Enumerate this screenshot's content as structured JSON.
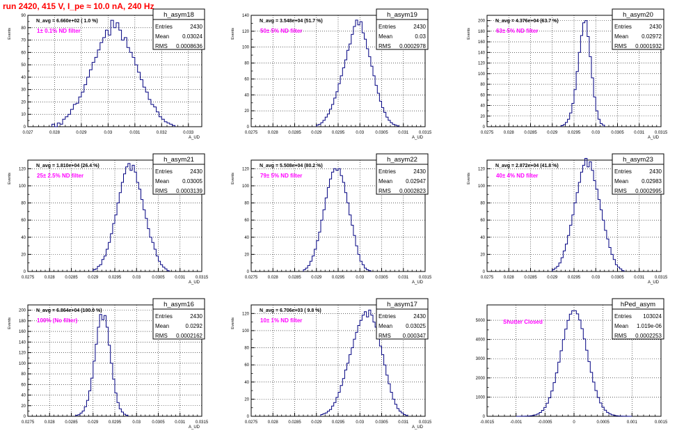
{
  "page_title": "run 2420,   415 V, I_pe ≈ 10.0 nA, 240 Hz",
  "colors": {
    "histogram_line": "#000080",
    "annotation": "#ff00ff",
    "title": "#ff0000",
    "grid": "#000000"
  },
  "chart_data": [
    {
      "type": "histogram",
      "name": "h_asym18",
      "stats": {
        "Entries": "2430",
        "Mean": "0.03024",
        "RMS": "0.0008636"
      },
      "navg_label": "N_avg = 6.660e+02 ( 1.0 %)",
      "filter_label": "1± 0.1% ND filter",
      "xlabel": "A_UD",
      "ylabel": "Events",
      "xlim": [
        0.027,
        0.0335
      ],
      "ylim": [
        0,
        90
      ],
      "xticks": [
        0.027,
        0.028,
        0.029,
        0.03,
        0.031,
        0.032,
        0.033
      ],
      "xtick_labels": [
        "0.027",
        "0.028",
        "0.029",
        "0.03",
        "0.031",
        "0.032",
        "0.033"
      ],
      "yticks": [
        0,
        10,
        20,
        30,
        40,
        50,
        60,
        70,
        80,
        90
      ],
      "ytick_labels": [
        "0",
        "10",
        "20",
        "30",
        "40",
        "50",
        "60",
        "70",
        "80",
        "90"
      ],
      "bin_edges": [
        0.0279,
        0.028,
        0.0281,
        0.0282,
        0.0283,
        0.0284,
        0.0285,
        0.0286,
        0.0287,
        0.0288,
        0.0289,
        0.029,
        0.0291,
        0.0292,
        0.0293,
        0.0294,
        0.0295,
        0.0296,
        0.0297,
        0.0298,
        0.0299,
        0.03,
        0.0301,
        0.0302,
        0.0303,
        0.0304,
        0.0305,
        0.0306,
        0.0307,
        0.0308,
        0.0309,
        0.031,
        0.0311,
        0.0312,
        0.0313,
        0.0314,
        0.0315,
        0.0316,
        0.0317,
        0.0318,
        0.0319,
        0.032,
        0.0321,
        0.0322,
        0.0323,
        0.0324,
        0.0325
      ],
      "counts": [
        2,
        0,
        3,
        2,
        6,
        8,
        10,
        14,
        18,
        19,
        24,
        28,
        34,
        40,
        46,
        52,
        56,
        62,
        68,
        72,
        78,
        74,
        86,
        80,
        84,
        78,
        70,
        72,
        64,
        60,
        56,
        50,
        44,
        38,
        32,
        28,
        22,
        18,
        16,
        12,
        8,
        6,
        4,
        3,
        2,
        1
      ]
    },
    {
      "type": "histogram",
      "name": "h_asym19",
      "stats": {
        "Entries": "2430",
        "Mean": "0.03",
        "RMS": "0.0002978"
      },
      "navg_label": "N_avg = 3.548e+04 (51.7 %)",
      "filter_label": "50± 5% ND filter",
      "xlabel": "A_UD",
      "ylabel": "Events",
      "xlim": [
        0.0275,
        0.0315
      ],
      "ylim": [
        0,
        140
      ],
      "xticks": [
        0.0275,
        0.028,
        0.0285,
        0.029,
        0.0295,
        0.03,
        0.0305,
        0.031,
        0.0315
      ],
      "xtick_labels": [
        "0.0275",
        "0.028",
        "0.0285",
        "0.029",
        "0.0295",
        "0.03",
        "0.0305",
        "0.031",
        "0.0315"
      ],
      "yticks": [
        0,
        20,
        40,
        60,
        80,
        100,
        120,
        140
      ],
      "ytick_labels": [
        "0",
        "20",
        "40",
        "60",
        "80",
        "100",
        "120",
        "140"
      ],
      "bin_edges": [
        0.029,
        0.02905,
        0.0291,
        0.02915,
        0.0292,
        0.02925,
        0.0293,
        0.02935,
        0.0294,
        0.02945,
        0.0295,
        0.02955,
        0.0296,
        0.02965,
        0.0297,
        0.02975,
        0.0298,
        0.02985,
        0.0299,
        0.02995,
        0.03,
        0.03005,
        0.0301,
        0.03015,
        0.0302,
        0.03025,
        0.0303,
        0.03035,
        0.0304,
        0.03045,
        0.0305,
        0.03055,
        0.0306,
        0.03065,
        0.0307,
        0.03075,
        0.0308,
        0.03085,
        0.0309
      ],
      "counts": [
        2,
        3,
        5,
        8,
        12,
        16,
        22,
        28,
        36,
        44,
        54,
        64,
        74,
        84,
        96,
        104,
        116,
        126,
        134,
        128,
        132,
        118,
        110,
        98,
        88,
        76,
        64,
        52,
        42,
        32,
        24,
        18,
        12,
        8,
        5,
        3,
        2,
        1
      ]
    },
    {
      "type": "histogram",
      "name": "h_asym20",
      "stats": {
        "Entries": "2430",
        "Mean": "0.02972",
        "RMS": "0.0001932"
      },
      "navg_label": "N_avg = 4.376e+04 (63.7 %)",
      "filter_label": "63± 5% ND filter",
      "xlabel": "A_UD",
      "ylabel": "Events",
      "xlim": [
        0.0275,
        0.0315
      ],
      "ylim": [
        0,
        210
      ],
      "xticks": [
        0.0275,
        0.028,
        0.0285,
        0.029,
        0.0295,
        0.03,
        0.0305,
        0.031,
        0.0315
      ],
      "xtick_labels": [
        "0.0275",
        "0.028",
        "0.0285",
        "0.029",
        "0.0295",
        "0.03",
        "0.0305",
        "0.031",
        "0.0315"
      ],
      "yticks": [
        0,
        20,
        40,
        60,
        80,
        100,
        120,
        140,
        160,
        180,
        200
      ],
      "ytick_labels": [
        "0",
        "20",
        "40",
        "60",
        "80",
        "100",
        "120",
        "140",
        "160",
        "180",
        "200"
      ],
      "bin_edges": [
        0.0292,
        0.02925,
        0.0293,
        0.02935,
        0.0294,
        0.02945,
        0.0295,
        0.02955,
        0.0296,
        0.02965,
        0.0297,
        0.02975,
        0.0298,
        0.02985,
        0.0299,
        0.02995,
        0.03,
        0.03005,
        0.0301,
        0.03015,
        0.0302
      ],
      "counts": [
        2,
        4,
        8,
        14,
        26,
        44,
        70,
        104,
        140,
        172,
        196,
        200,
        170,
        132,
        92,
        56,
        30,
        14,
        6,
        3
      ]
    },
    {
      "type": "histogram",
      "name": "h_asym21",
      "stats": {
        "Entries": "2430",
        "Mean": "0.03005",
        "RMS": "0.0003139"
      },
      "navg_label": "N_avg = 1.810e+04 (26.4 %)",
      "filter_label": "25± 2.5% ND filter",
      "xlabel": "A_UD",
      "ylabel": "Events",
      "xlim": [
        0.0275,
        0.0315
      ],
      "ylim": [
        0,
        130
      ],
      "xticks": [
        0.0275,
        0.028,
        0.0285,
        0.029,
        0.0295,
        0.03,
        0.0305,
        0.031,
        0.0315
      ],
      "xtick_labels": [
        "0.0275",
        "0.028",
        "0.0285",
        "0.029",
        "0.0295",
        "0.03",
        "0.0305",
        "0.031",
        "0.0315"
      ],
      "yticks": [
        0,
        20,
        40,
        60,
        80,
        100,
        120
      ],
      "ytick_labels": [
        "0",
        "20",
        "40",
        "60",
        "80",
        "100",
        "120"
      ],
      "bin_edges": [
        0.029,
        0.02905,
        0.0291,
        0.02915,
        0.0292,
        0.02925,
        0.0293,
        0.02935,
        0.0294,
        0.02945,
        0.0295,
        0.02955,
        0.0296,
        0.02965,
        0.0297,
        0.02975,
        0.0298,
        0.02985,
        0.0299,
        0.02995,
        0.03,
        0.03005,
        0.0301,
        0.03015,
        0.0302,
        0.03025,
        0.0303,
        0.03035,
        0.0304,
        0.03045,
        0.0305,
        0.03055,
        0.0306,
        0.03065,
        0.0307,
        0.03075
      ],
      "counts": [
        2,
        3,
        6,
        8,
        14,
        18,
        26,
        34,
        44,
        56,
        66,
        80,
        92,
        104,
        114,
        122,
        126,
        118,
        124,
        116,
        104,
        96,
        84,
        72,
        62,
        50,
        40,
        34,
        26,
        18,
        12,
        8,
        5,
        3,
        1
      ]
    },
    {
      "type": "histogram",
      "name": "h_asym22",
      "stats": {
        "Entries": "2430",
        "Mean": "0.02947",
        "RMS": "0.0002823"
      },
      "navg_label": "N_avg = 5.508e+04 (80.2 %)",
      "filter_label": "79± 5% ND filter",
      "xlabel": "A_UD",
      "ylabel": "Events",
      "xlim": [
        0.0275,
        0.0315
      ],
      "ylim": [
        0,
        130
      ],
      "xticks": [
        0.0275,
        0.028,
        0.0285,
        0.029,
        0.0295,
        0.03,
        0.0305,
        0.031,
        0.0315
      ],
      "xtick_labels": [
        "0.0275",
        "0.028",
        "0.0285",
        "0.029",
        "0.0295",
        "0.03",
        "0.0305",
        "0.031",
        "0.0315"
      ],
      "yticks": [
        0,
        20,
        40,
        60,
        80,
        100,
        120
      ],
      "ytick_labels": [
        "0",
        "20",
        "40",
        "60",
        "80",
        "100",
        "120"
      ],
      "bin_edges": [
        0.0287,
        0.02875,
        0.0288,
        0.02885,
        0.0289,
        0.02895,
        0.029,
        0.02905,
        0.0291,
        0.02915,
        0.0292,
        0.02925,
        0.0293,
        0.02935,
        0.0294,
        0.02945,
        0.0295,
        0.02955,
        0.0296,
        0.02965,
        0.0297,
        0.02975,
        0.0298,
        0.02985,
        0.0299,
        0.02995,
        0.03,
        0.03005,
        0.0301,
        0.03015,
        0.0302,
        0.03025
      ],
      "counts": [
        2,
        4,
        7,
        12,
        18,
        26,
        36,
        46,
        60,
        72,
        86,
        98,
        108,
        116,
        120,
        118,
        120,
        112,
        104,
        92,
        80,
        66,
        54,
        42,
        30,
        20,
        12,
        8,
        4,
        2,
        1
      ]
    },
    {
      "type": "histogram",
      "name": "h_asym23",
      "stats": {
        "Entries": "2430",
        "Mean": "0.02983",
        "RMS": "0.0002995"
      },
      "navg_label": "N_avg = 2.872e+04 (41.8 %)",
      "filter_label": "40± 4% ND filter",
      "xlabel": "A_UD",
      "ylabel": "Events",
      "xlim": [
        0.0275,
        0.0315
      ],
      "ylim": [
        0,
        130
      ],
      "xticks": [
        0.0275,
        0.028,
        0.0285,
        0.029,
        0.0295,
        0.03,
        0.0305,
        0.031,
        0.0315
      ],
      "xtick_labels": [
        "0.0275",
        "0.028",
        "0.0285",
        "0.029",
        "0.0295",
        "0.03",
        "0.0305",
        "0.031",
        "0.0315"
      ],
      "yticks": [
        0,
        20,
        40,
        60,
        80,
        100,
        120
      ],
      "ytick_labels": [
        "0",
        "20",
        "40",
        "60",
        "80",
        "100",
        "120"
      ],
      "bin_edges": [
        0.029,
        0.02905,
        0.0291,
        0.02915,
        0.0292,
        0.02925,
        0.0293,
        0.02935,
        0.0294,
        0.02945,
        0.0295,
        0.02955,
        0.0296,
        0.02965,
        0.0297,
        0.02975,
        0.0298,
        0.02985,
        0.0299,
        0.02995,
        0.03,
        0.03005,
        0.0301,
        0.03015,
        0.0302,
        0.03025,
        0.0303,
        0.03035,
        0.0304,
        0.03045,
        0.0305,
        0.03055,
        0.0306,
        0.03065
      ],
      "counts": [
        2,
        4,
        6,
        10,
        16,
        24,
        32,
        42,
        54,
        66,
        80,
        92,
        104,
        116,
        124,
        132,
        122,
        128,
        118,
        106,
        96,
        84,
        72,
        60,
        48,
        38,
        28,
        20,
        14,
        8,
        5,
        3,
        1
      ]
    },
    {
      "type": "histogram",
      "name": "h_asym16",
      "stats": {
        "Entries": "2430",
        "Mean": "0.0292",
        "RMS": "0.0002162"
      },
      "navg_label": "N_avg = 6.864e+04 (100.0 %)",
      "filter_label": "100% (No filter)",
      "xlabel": "A_UD",
      "ylabel": "Events",
      "xlim": [
        0.0275,
        0.0315
      ],
      "ylim": [
        0,
        210
      ],
      "xticks": [
        0.0275,
        0.028,
        0.0285,
        0.029,
        0.0295,
        0.03,
        0.0305,
        0.031,
        0.0315
      ],
      "xtick_labels": [
        "0.0275",
        "0.028",
        "0.0285",
        "0.029",
        "0.0295",
        "0.03",
        "0.0305",
        "0.031",
        "0.0315"
      ],
      "yticks": [
        0,
        20,
        40,
        60,
        80,
        100,
        120,
        140,
        160,
        180,
        200
      ],
      "ytick_labels": [
        "0",
        "20",
        "40",
        "60",
        "80",
        "100",
        "120",
        "140",
        "160",
        "180",
        "200"
      ],
      "bin_edges": [
        0.0286,
        0.02865,
        0.0287,
        0.02875,
        0.0288,
        0.02885,
        0.0289,
        0.02895,
        0.029,
        0.02905,
        0.0291,
        0.02915,
        0.0292,
        0.02925,
        0.0293,
        0.02935,
        0.0294,
        0.02945,
        0.0295,
        0.02955,
        0.0296,
        0.02965,
        0.0297,
        0.02975,
        0.0298
      ],
      "counts": [
        2,
        3,
        6,
        10,
        18,
        30,
        48,
        72,
        104,
        136,
        168,
        192,
        182,
        190,
        168,
        134,
        100,
        70,
        44,
        26,
        14,
        8,
        4,
        2
      ]
    },
    {
      "type": "histogram",
      "name": "h_asym17",
      "stats": {
        "Entries": "2430",
        "Mean": "0.03025",
        "RMS": "0.000347"
      },
      "navg_label": "N_avg = 6.706e+03 ( 9.8 %)",
      "filter_label": "10± 1% ND filter",
      "xlabel": "A_UD",
      "ylabel": "Events",
      "xlim": [
        0.0275,
        0.0315
      ],
      "ylim": [
        0,
        130
      ],
      "xticks": [
        0.0275,
        0.028,
        0.0285,
        0.029,
        0.0295,
        0.03,
        0.0305,
        0.031,
        0.0315
      ],
      "xtick_labels": [
        "0.0275",
        "0.028",
        "0.0285",
        "0.029",
        "0.0295",
        "0.03",
        "0.0305",
        "0.031",
        "0.0315"
      ],
      "yticks": [
        0,
        20,
        40,
        60,
        80,
        100,
        120
      ],
      "ytick_labels": [
        "0",
        "20",
        "40",
        "60",
        "80",
        "100",
        "120"
      ],
      "bin_edges": [
        0.0291,
        0.02915,
        0.0292,
        0.02925,
        0.0293,
        0.02935,
        0.0294,
        0.02945,
        0.0295,
        0.02955,
        0.0296,
        0.02965,
        0.0297,
        0.02975,
        0.0298,
        0.02985,
        0.0299,
        0.02995,
        0.03,
        0.03005,
        0.0301,
        0.03015,
        0.0302,
        0.03025,
        0.0303,
        0.03035,
        0.0304,
        0.03045,
        0.0305,
        0.03055,
        0.0306,
        0.03065,
        0.0307,
        0.03075,
        0.0308,
        0.03085,
        0.0309,
        0.03095,
        0.031,
        0.03105,
        0.0311
      ],
      "counts": [
        2,
        3,
        4,
        6,
        8,
        12,
        16,
        22,
        28,
        36,
        44,
        54,
        62,
        72,
        80,
        90,
        98,
        106,
        112,
        118,
        122,
        116,
        124,
        118,
        110,
        104,
        94,
        82,
        72,
        60,
        48,
        38,
        28,
        20,
        14,
        9,
        6,
        4,
        2,
        1
      ]
    },
    {
      "type": "histogram",
      "name": "hPed_asym",
      "stats": {
        "Entries": "103024",
        "Mean": "1.019e-06",
        "RMS": "0.0002253"
      },
      "navg_label": "",
      "filter_label": "Shutter Closed",
      "xlabel": "",
      "ylabel": "",
      "xlim": [
        -0.0015,
        0.0015
      ],
      "ylim": [
        0,
        5800
      ],
      "xticks": [
        -0.0015,
        -0.001,
        -0.0005,
        0,
        0.0005,
        0.001,
        0.0015
      ],
      "xtick_labels": [
        "-0.0015",
        "-0.001",
        "-0.0005",
        "0",
        "0.0005",
        "0.001",
        "0.0015"
      ],
      "yticks": [
        0,
        1000,
        2000,
        3000,
        4000,
        5000
      ],
      "ytick_labels": [
        "0",
        "1000",
        "2000",
        "3000",
        "4000",
        "5000"
      ],
      "gaussian": {
        "amplitude": 5520,
        "sigma": 0.0002253,
        "mean": 1e-06,
        "range": [
          -0.001,
          0.001
        ],
        "bin_width": 4e-05
      }
    }
  ]
}
